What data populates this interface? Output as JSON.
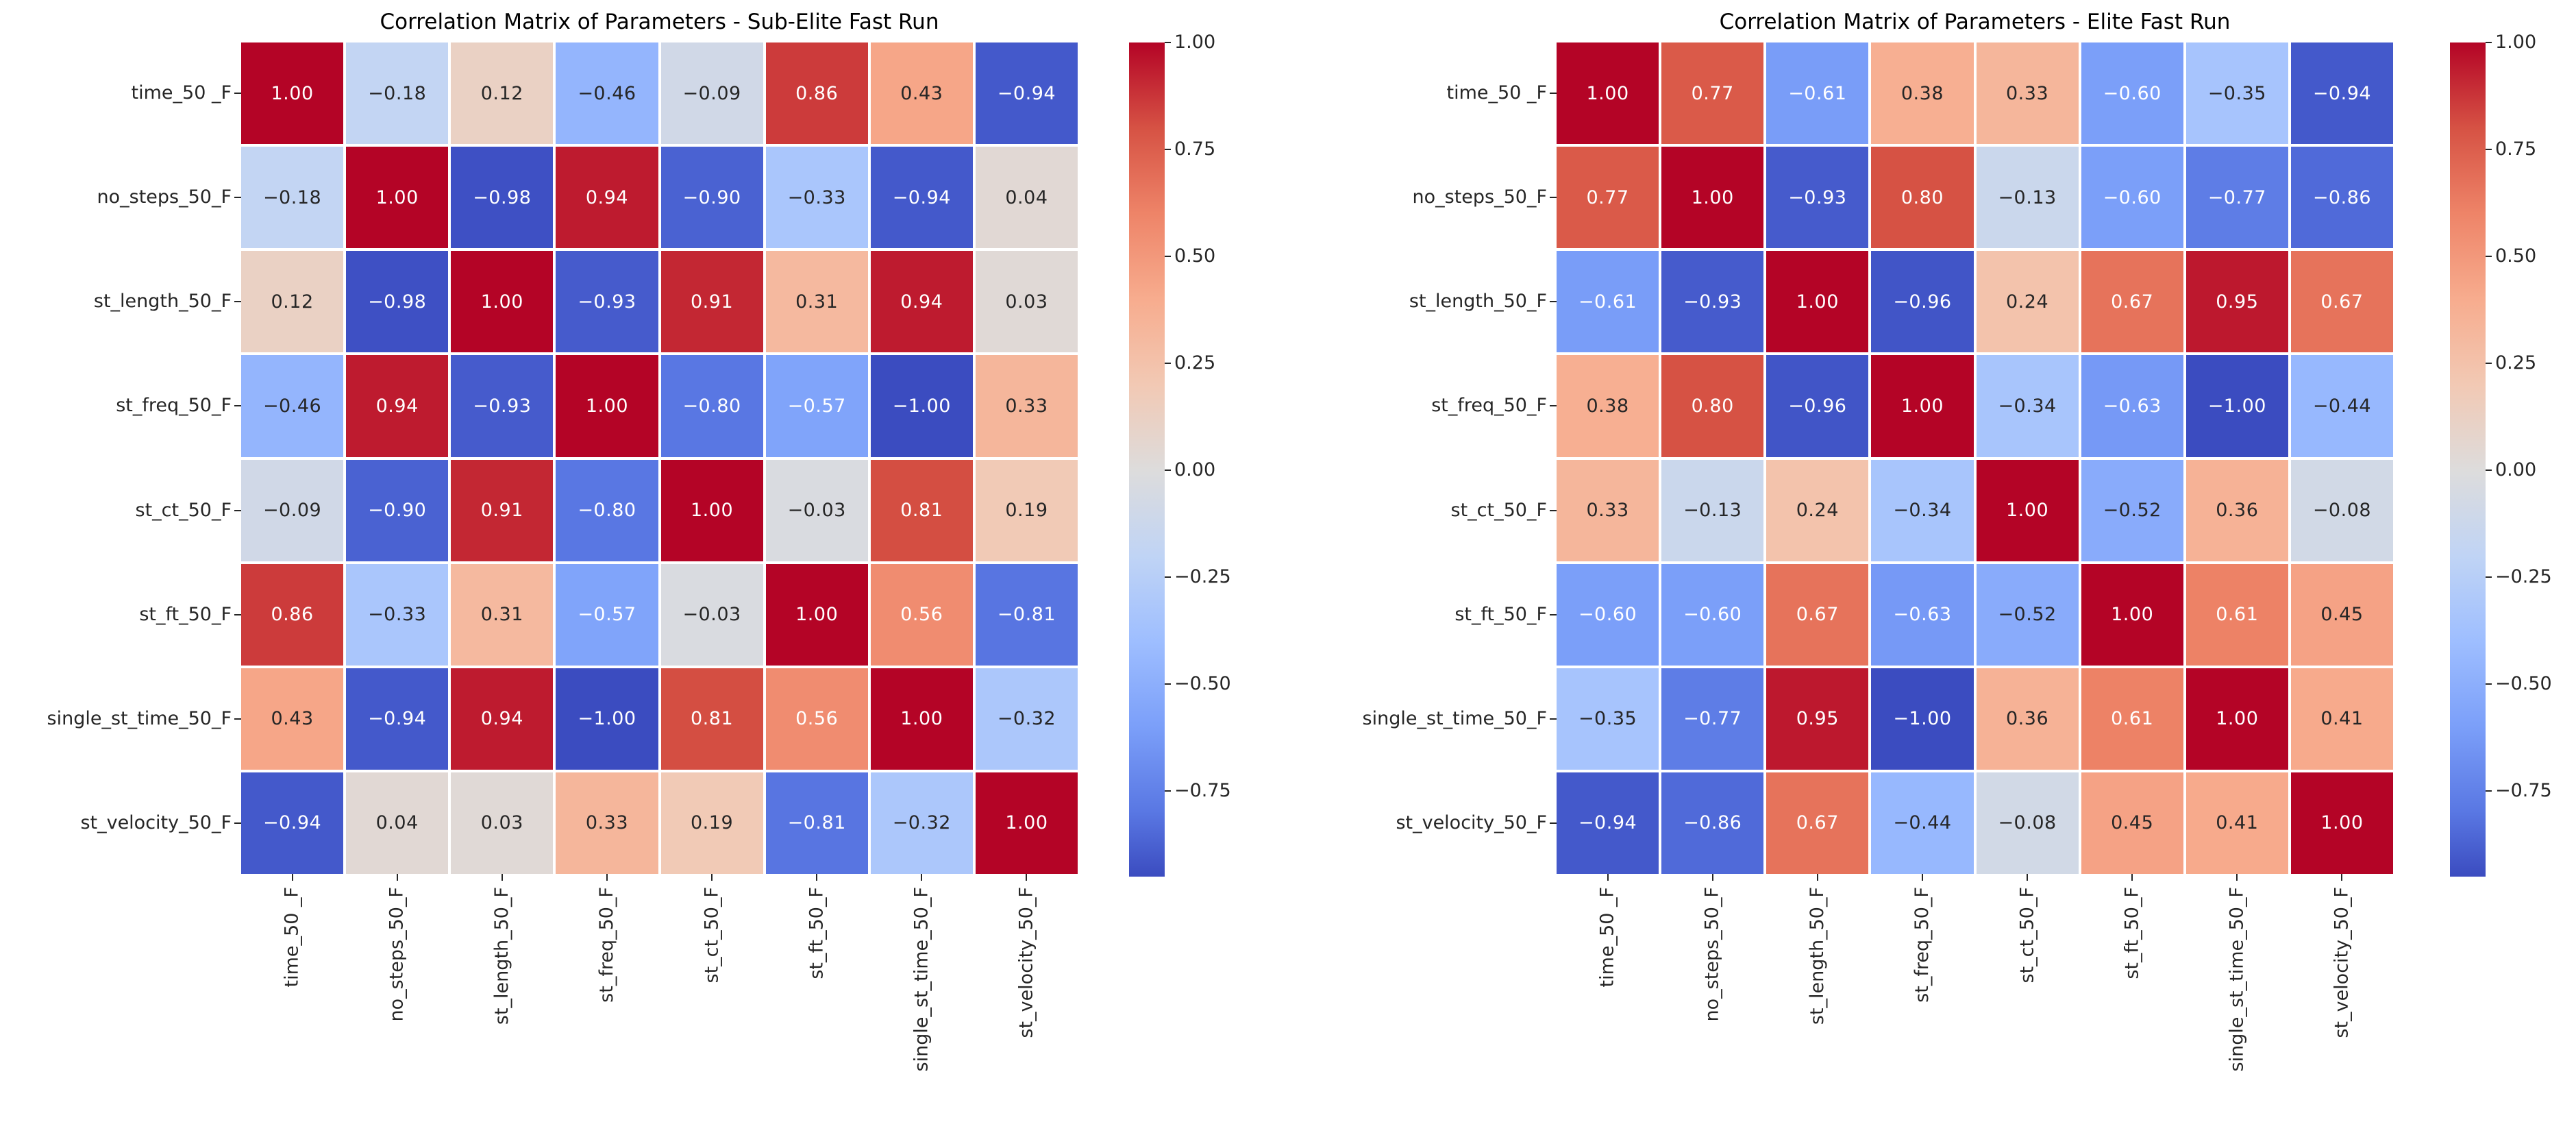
{
  "chart_data": [
    {
      "type": "heatmap",
      "title": "Correlation Matrix of Parameters - Sub-Elite Fast Run",
      "categories": [
        "time_50 _F",
        "no_steps_50_F",
        "st_length_50_F",
        "st_freq_50_F",
        "st_ct_50_F",
        "st_ft_50_F",
        "single_st_time_50_F",
        "st_velocity_50_F"
      ],
      "values": [
        [
          1.0,
          -0.18,
          0.12,
          -0.46,
          -0.09,
          0.86,
          0.43,
          -0.94
        ],
        [
          -0.18,
          1.0,
          -0.98,
          0.94,
          -0.9,
          -0.33,
          -0.94,
          0.04
        ],
        [
          0.12,
          -0.98,
          1.0,
          -0.93,
          0.91,
          0.31,
          0.94,
          0.03
        ],
        [
          -0.46,
          0.94,
          -0.93,
          1.0,
          -0.8,
          -0.57,
          -1.0,
          0.33
        ],
        [
          -0.09,
          -0.9,
          0.91,
          -0.8,
          1.0,
          -0.03,
          0.81,
          0.19
        ],
        [
          0.86,
          -0.33,
          0.31,
          -0.57,
          -0.03,
          1.0,
          0.56,
          -0.81
        ],
        [
          0.43,
          -0.94,
          0.94,
          -1.0,
          0.81,
          0.56,
          1.0,
          -0.32
        ],
        [
          -0.94,
          0.04,
          0.03,
          0.33,
          0.19,
          -0.81,
          -0.32,
          1.0
        ]
      ],
      "colormap": "coolwarm",
      "vmin": -1.0,
      "vmax": 1.0,
      "annotation_format": ".2f",
      "grid": false,
      "colorbar_position": "right",
      "colorbar_ticks": {
        "values": [
          1.0,
          0.75,
          0.5,
          0.25,
          0.0,
          -0.25,
          -0.5,
          -0.75
        ],
        "labels": [
          "1.00",
          "0.75",
          "0.50",
          "0.25",
          "0.00",
          "−0.25",
          "−0.50",
          "−0.75"
        ]
      }
    },
    {
      "type": "heatmap",
      "title": "Correlation Matrix of Parameters - Elite Fast Run",
      "categories": [
        "time_50 _F",
        "no_steps_50_F",
        "st_length_50_F",
        "st_freq_50_F",
        "st_ct_50_F",
        "st_ft_50_F",
        "single_st_time_50_F",
        "st_velocity_50_F"
      ],
      "values": [
        [
          1.0,
          0.77,
          -0.61,
          0.38,
          0.33,
          -0.6,
          -0.35,
          -0.94
        ],
        [
          0.77,
          1.0,
          -0.93,
          0.8,
          -0.13,
          -0.6,
          -0.77,
          -0.86
        ],
        [
          -0.61,
          -0.93,
          1.0,
          -0.96,
          0.24,
          0.67,
          0.95,
          0.67
        ],
        [
          0.38,
          0.8,
          -0.96,
          1.0,
          -0.34,
          -0.63,
          -1.0,
          -0.44
        ],
        [
          0.33,
          -0.13,
          0.24,
          -0.34,
          1.0,
          -0.52,
          0.36,
          -0.08
        ],
        [
          -0.6,
          -0.6,
          0.67,
          -0.63,
          -0.52,
          1.0,
          0.61,
          0.45
        ],
        [
          -0.35,
          -0.77,
          0.95,
          -1.0,
          0.36,
          0.61,
          1.0,
          0.41
        ],
        [
          -0.94,
          -0.86,
          0.67,
          -0.44,
          -0.08,
          0.45,
          0.41,
          1.0
        ]
      ],
      "colormap": "coolwarm",
      "vmin": -1.0,
      "vmax": 1.0,
      "annotation_format": ".2f",
      "grid": false,
      "colorbar_position": "right",
      "colorbar_ticks": {
        "values": [
          1.0,
          0.75,
          0.5,
          0.25,
          0.0,
          -0.25,
          -0.5,
          -0.75
        ],
        "labels": [
          "1.00",
          "0.75",
          "0.50",
          "0.25",
          "0.00",
          "−0.25",
          "−0.50",
          "−0.75"
        ]
      }
    }
  ],
  "colors": {
    "background": "#ffffff",
    "coolwarm_anchors": [
      "#3b4cc0",
      "#5977e3",
      "#7b9ff9",
      "#9ebeff",
      "#c0d4f5",
      "#dddcdc",
      "#f2c9b4",
      "#f7ac8e",
      "#ee8468",
      "#d65244",
      "#b40426"
    ],
    "annotation_light": "#ffffff",
    "annotation_dark": "#262626",
    "axis_label": "#262626",
    "title": "#000000",
    "tick": "#262626"
  }
}
